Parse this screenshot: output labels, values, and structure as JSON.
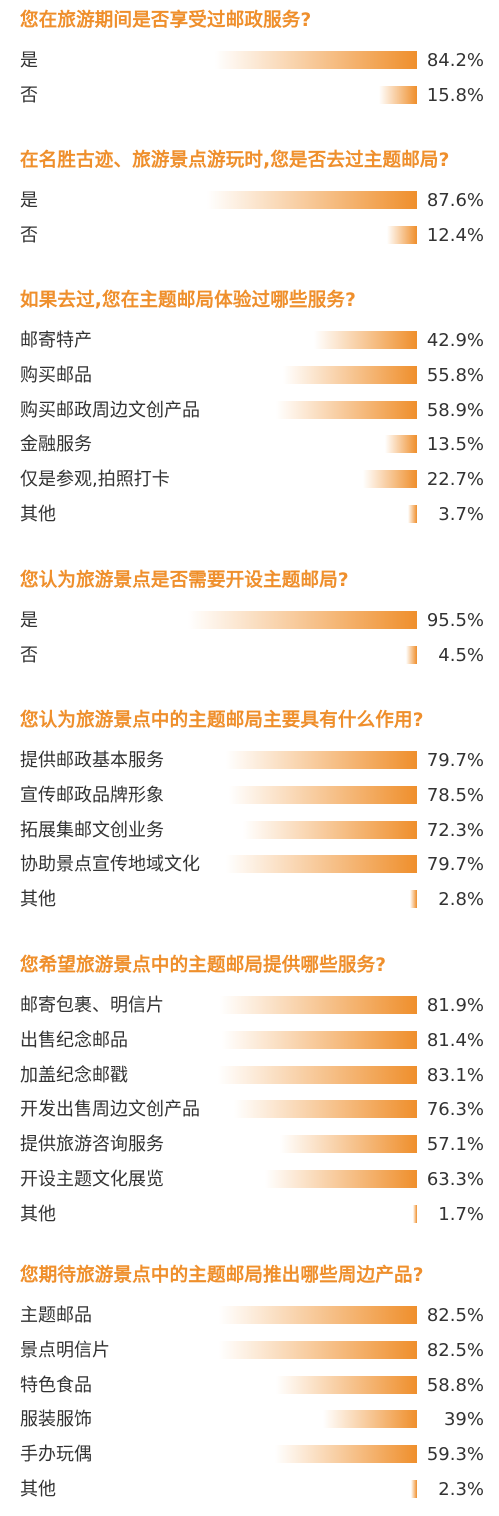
{
  "colors": {
    "title": "#ef8f2c",
    "bar_end": "#ef8f2c",
    "bar_start": "#ffffff",
    "text": "#333333"
  },
  "chart_data": [
    {
      "type": "bar",
      "title": "您在旅游期间是否享受过邮政服务?",
      "categories": [
        "是",
        "否"
      ],
      "values_text": [
        "84.2%",
        "15.8%"
      ],
      "values": [
        84.2,
        15.8
      ]
    },
    {
      "type": "bar",
      "title": "在名胜古迹、旅游景点游玩时,您是否去过主题邮局?",
      "categories": [
        "是",
        "否"
      ],
      "values_text": [
        "87.6%",
        "12.4%"
      ],
      "values": [
        87.6,
        12.4
      ]
    },
    {
      "type": "bar",
      "title": "如果去过,您在主题邮局体验过哪些服务?",
      "categories": [
        "邮寄特产",
        "购买邮品",
        "购买邮政周边文创产品",
        "金融服务",
        "仅是参观,拍照打卡",
        "其他"
      ],
      "values_text": [
        "42.9%",
        "55.8%",
        "58.9%",
        "13.5%",
        "22.7%",
        "3.7%"
      ],
      "values": [
        42.9,
        55.8,
        58.9,
        13.5,
        22.7,
        3.7
      ]
    },
    {
      "type": "bar",
      "title": "您认为旅游景点是否需要开设主题邮局?",
      "categories": [
        "是",
        "否"
      ],
      "values_text": [
        "95.5%",
        "4.5%"
      ],
      "values": [
        95.5,
        4.5
      ]
    },
    {
      "type": "bar",
      "title": "您认为旅游景点中的主题邮局主要具有什么作用?",
      "categories": [
        "提供邮政基本服务",
        "宣传邮政品牌形象",
        "拓展集邮文创业务",
        "协助景点宣传地域文化",
        "其他"
      ],
      "values_text": [
        "79.7%",
        "78.5%",
        "72.3%",
        "79.7%",
        "2.8%"
      ],
      "values": [
        79.7,
        78.5,
        72.3,
        79.7,
        2.8
      ]
    },
    {
      "type": "bar",
      "title": "您希望旅游景点中的主题邮局提供哪些服务?",
      "categories": [
        "邮寄包裹、明信片",
        "出售纪念邮品",
        "加盖纪念邮戳",
        "开发出售周边文创产品",
        "提供旅游咨询服务",
        "开设主题文化展览",
        "其他"
      ],
      "values_text": [
        "81.9%",
        "81.4%",
        "83.1%",
        "76.3%",
        "57.1%",
        "63.3%",
        "1.7%"
      ],
      "values": [
        81.9,
        81.4,
        83.1,
        76.3,
        57.1,
        63.3,
        1.7
      ]
    },
    {
      "type": "bar",
      "title": "您期待旅游景点中的主题邮局推出哪些周边产品?",
      "categories": [
        "主题邮品",
        "景点明信片",
        "特色食品",
        "服装服饰",
        "手办玩偶",
        "其他"
      ],
      "values_text": [
        "82.5%",
        "82.5%",
        "58.8%",
        "39%",
        "59.3%",
        "2.3%"
      ],
      "values": [
        82.5,
        82.5,
        58.8,
        39,
        59.3,
        2.3
      ]
    }
  ]
}
